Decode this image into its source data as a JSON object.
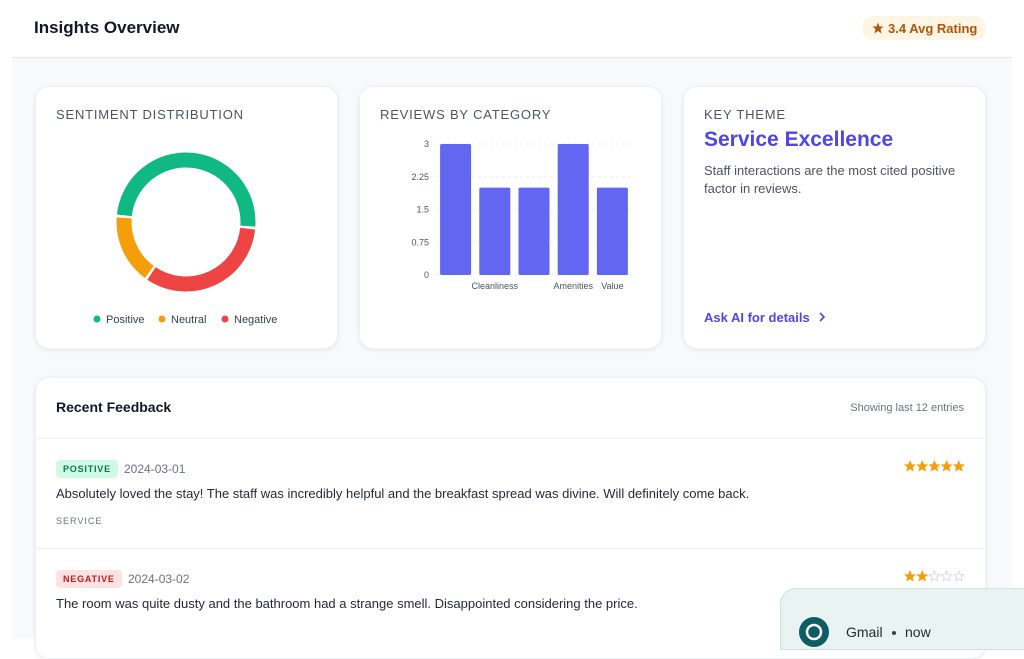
{
  "header": {
    "title": "Insights Overview",
    "rating": "3.4 Avg Rating"
  },
  "chart_data": [
    {
      "type": "doughnut",
      "title": "SENTIMENT DISTRIBUTION",
      "categories": [
        "Positive",
        "Neutral",
        "Negative"
      ],
      "values": [
        6,
        2,
        4
      ],
      "colors": [
        "#10b981",
        "#f59e0b",
        "#ef4444"
      ]
    },
    {
      "type": "bar",
      "title": "REVIEWS BY CATEGORY",
      "categories": [
        null,
        "Cleanliness",
        null,
        "Amenities",
        "Value"
      ],
      "values": [
        3,
        2,
        2,
        3,
        2
      ],
      "color": "#6366f1",
      "ylim": [
        0,
        3
      ],
      "yticks": [
        0,
        0.75,
        1.5,
        2.25,
        3
      ],
      "grid": true
    }
  ],
  "key_theme": {
    "label": "KEY THEME",
    "title": "Service Excellence",
    "text": "Staff interactions are the most cited positive factor in reviews.",
    "link": "Ask AI for details"
  },
  "feedback": {
    "title": "Recent Feedback",
    "count": "Showing last 12 entries",
    "entries": [
      {
        "sentiment": "POSITIVE",
        "date": "2024-03-01",
        "text": "Absolutely loved the stay! The staff was incredibly helpful and the breakfast spread was divine. Will definitely come back.",
        "tag": "SERVICE",
        "rating": 5
      },
      {
        "sentiment": "NEGATIVE",
        "date": "2024-03-02",
        "text": "The room was quite dusty and the bathroom had a strange smell. Disappointed considering the price.",
        "rating": 2
      }
    ]
  },
  "notification": {
    "app": "Gmail",
    "time": "now"
  }
}
